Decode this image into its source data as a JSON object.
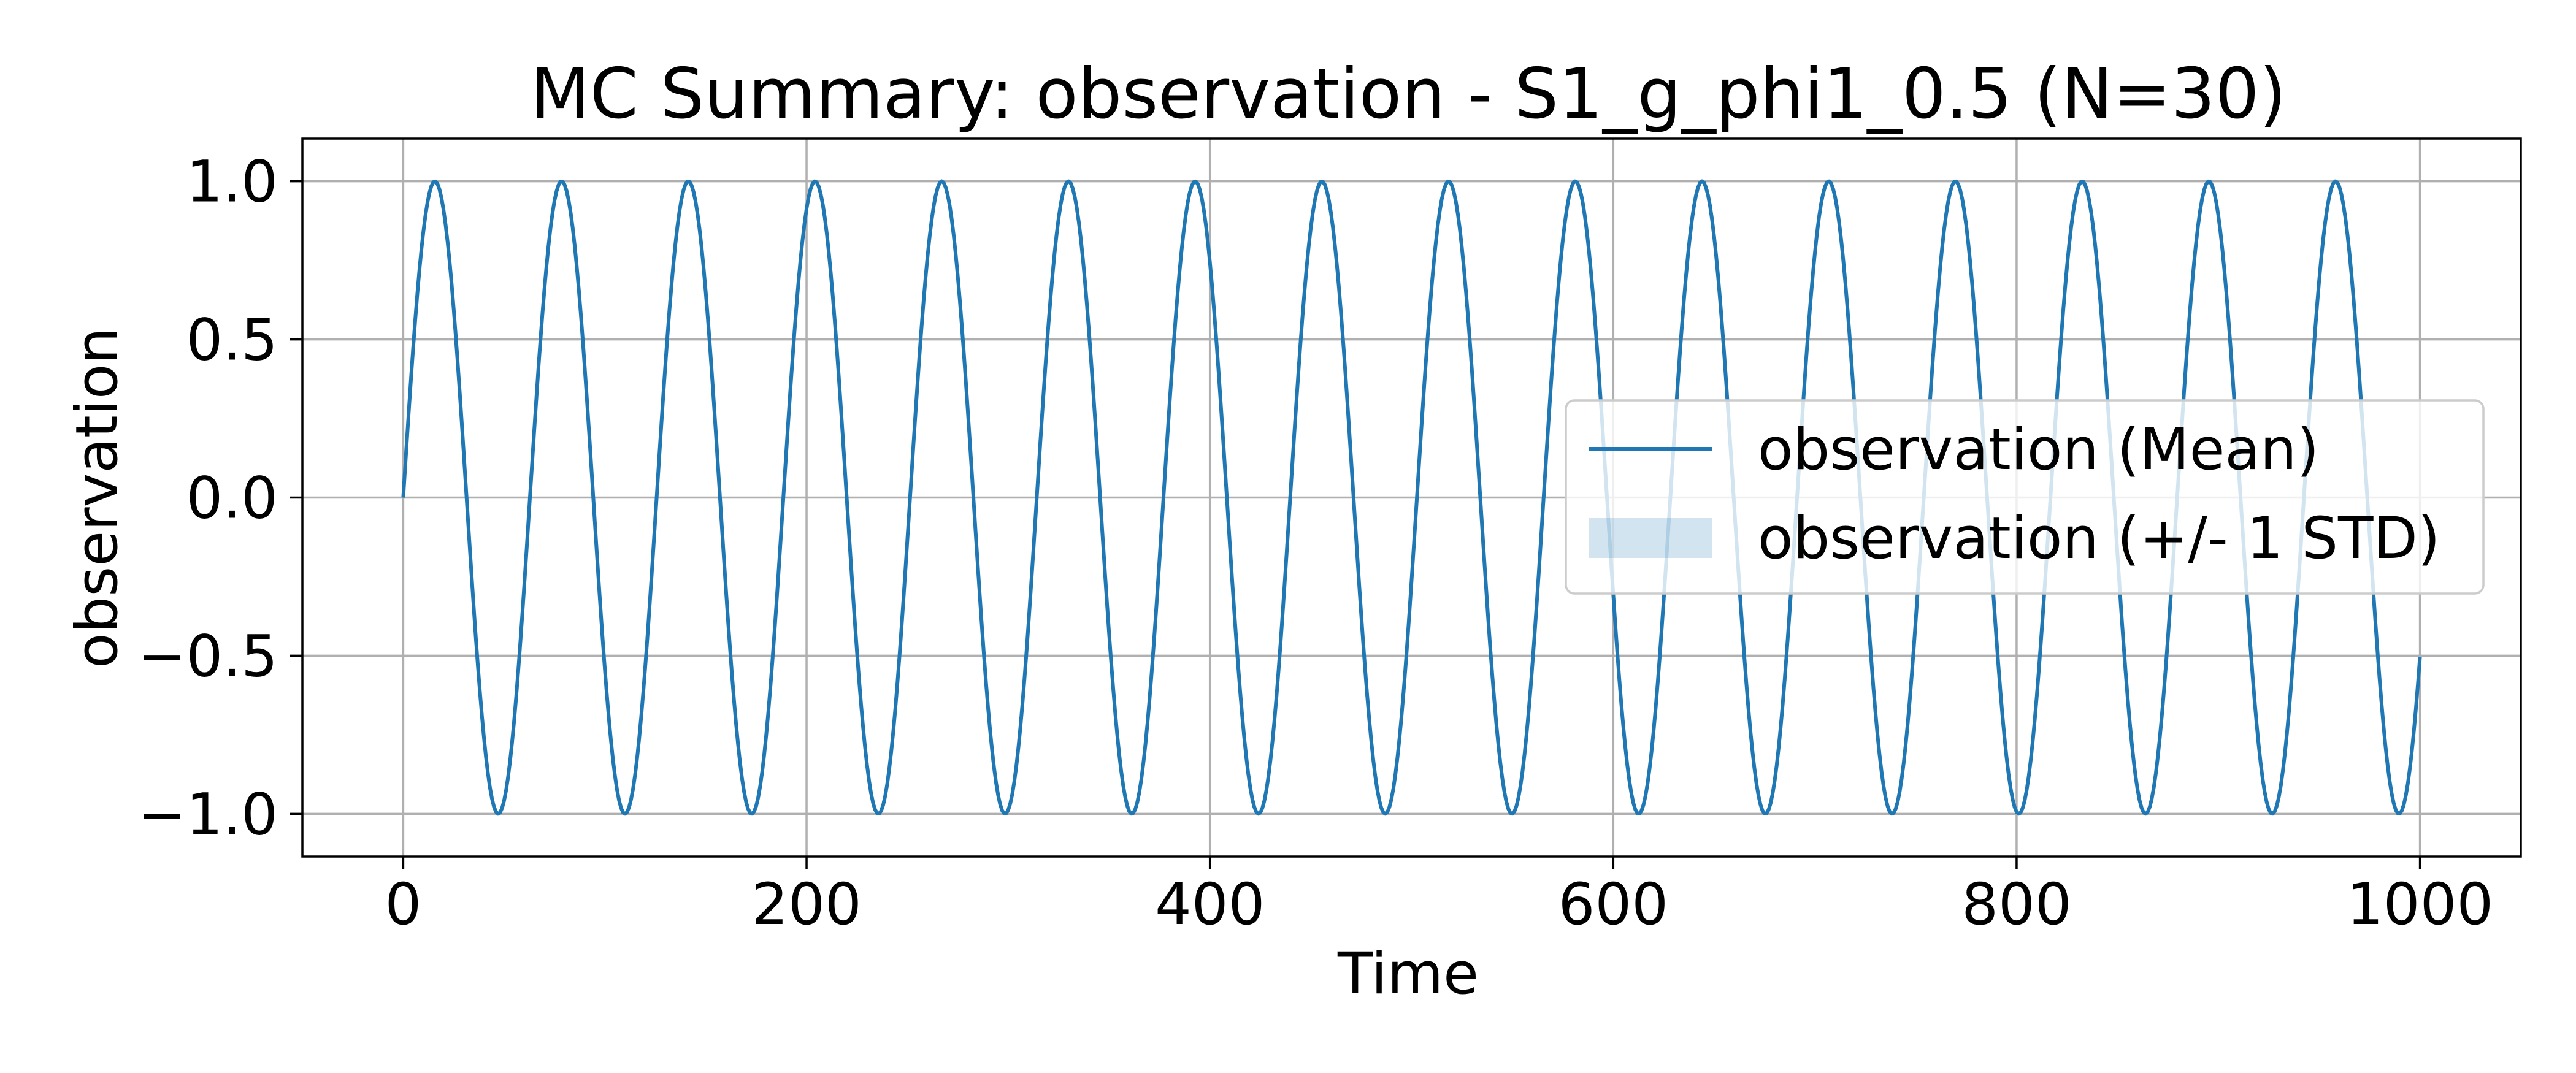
{
  "chart_data": {
    "type": "line",
    "title": "MC Summary: observation - S1_g_phi1_0.5 (N=30)",
    "xlabel": "Time",
    "ylabel": "observation",
    "xlim": [
      -50,
      1050
    ],
    "ylim": [
      -1.135,
      1.135
    ],
    "xticks": [
      0,
      200,
      400,
      600,
      800,
      1000
    ],
    "xtick_labels": [
      "0",
      "200",
      "400",
      "600",
      "800",
      "1000"
    ],
    "yticks": [
      1.0,
      0.5,
      0.0,
      -0.5,
      -1.0
    ],
    "ytick_labels": [
      "1.0",
      "0.5",
      "0.0",
      "−0.5",
      "−1.0"
    ],
    "grid": true,
    "legend_position": "center-right",
    "series": [
      {
        "name": "observation (Mean)",
        "kind": "line",
        "color": "#1f77b4",
        "function": "sin",
        "period": 62.83,
        "x_start": 0,
        "x_end": 1000,
        "samples": 1001
      },
      {
        "name": "observation (+/- 1 STD)",
        "kind": "band",
        "color": "#1f77b4",
        "opacity": 0.2,
        "std": 0.0
      }
    ]
  }
}
